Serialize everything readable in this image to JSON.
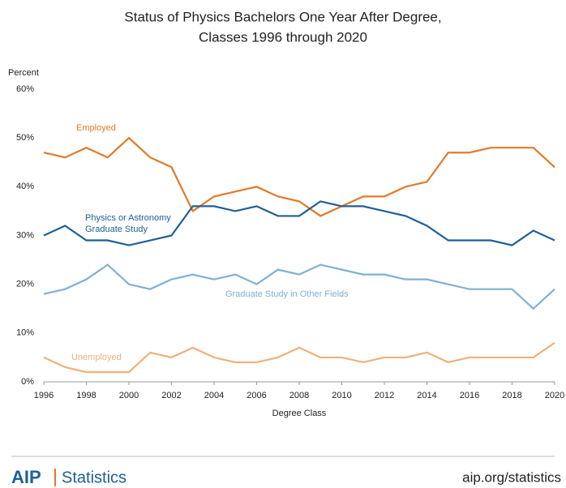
{
  "chart_data": {
    "type": "line",
    "title": [
      "Status of Physics Bachelors One Year After Degree,",
      "Classes 1996 through 2020"
    ],
    "y_label": "Percent",
    "x_label": "Degree Class",
    "x": [
      1996,
      1997,
      1998,
      1999,
      2000,
      2001,
      2002,
      2003,
      2004,
      2005,
      2006,
      2007,
      2008,
      2009,
      2010,
      2011,
      2012,
      2013,
      2014,
      2015,
      2016,
      2017,
      2018,
      2019,
      2020
    ],
    "series": [
      {
        "name": "Employed",
        "color": "#e07b28",
        "values": [
          47,
          46,
          48,
          46,
          50,
          46,
          44,
          35,
          38,
          39,
          40,
          38,
          37,
          34,
          36,
          38,
          38,
          40,
          41,
          47,
          47,
          48,
          48,
          48,
          44
        ]
      },
      {
        "name": "Physics or Astronomy Graduate Study",
        "color": "#1f5f96",
        "values": [
          30,
          32,
          29,
          29,
          28,
          29,
          30,
          36,
          36,
          35,
          36,
          34,
          34,
          37,
          36,
          36,
          35,
          34,
          32,
          29,
          29,
          29,
          28,
          31,
          29
        ]
      },
      {
        "name": "Graduate Study in Other Fields",
        "color": "#7fb1d3",
        "values": [
          18,
          19,
          21,
          24,
          20,
          19,
          21,
          22,
          21,
          22,
          20,
          23,
          22,
          24,
          23,
          22,
          22,
          21,
          21,
          20,
          19,
          19,
          19,
          15,
          19
        ]
      },
      {
        "name": "Unemployed",
        "color": "#f0b07a",
        "values": [
          5,
          3,
          2,
          2,
          2,
          6,
          5,
          7,
          5,
          4,
          4,
          5,
          7,
          5,
          5,
          4,
          5,
          5,
          6,
          4,
          5,
          5,
          5,
          5,
          8
        ]
      }
    ],
    "xlim": [
      1996,
      2020
    ],
    "xticks": [
      1996,
      1998,
      2000,
      2002,
      2004,
      2006,
      2008,
      2010,
      2012,
      2014,
      2016,
      2018,
      2020
    ],
    "ylim": [
      0,
      60
    ],
    "yticks": [
      {
        "value": 0,
        "label": "0%"
      },
      {
        "value": 10,
        "label": "10%"
      },
      {
        "value": 20,
        "label": "20%"
      },
      {
        "value": 30,
        "label": "30%"
      },
      {
        "value": 40,
        "label": "40%"
      },
      {
        "value": 50,
        "label": "50%"
      },
      {
        "value": 60,
        "label": "60%"
      }
    ],
    "grid": false
  },
  "footer": {
    "logo": "AIP",
    "brand": "Statistics",
    "url": "aip.org/statistics"
  }
}
